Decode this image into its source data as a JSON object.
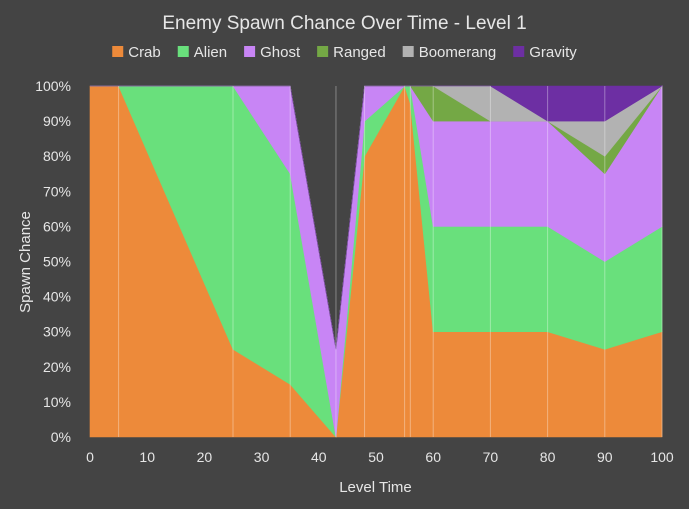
{
  "chart_data": {
    "type": "area",
    "stacked": true,
    "title": "Enemy Spawn Chance Over Time - Level 1",
    "xlabel": "Level Time",
    "ylabel": "Spawn Chance",
    "xlim": [
      0,
      100
    ],
    "ylim": [
      0,
      100
    ],
    "x_ticks": [
      0,
      10,
      20,
      30,
      40,
      50,
      60,
      70,
      80,
      90,
      100
    ],
    "y_ticks": [
      "0%",
      "10%",
      "20%",
      "30%",
      "40%",
      "50%",
      "60%",
      "70%",
      "80%",
      "90%",
      "100%"
    ],
    "grid": "vertical",
    "legend_position": "top",
    "x": [
      0,
      5,
      25,
      35,
      43,
      48,
      55,
      56,
      60,
      70,
      80,
      90,
      100
    ],
    "series": [
      {
        "name": "Crab",
        "color": "#ed8a3a",
        "values": [
          100,
          100,
          25,
          15,
          0,
          80,
          100,
          95,
          30,
          30,
          30,
          25,
          30
        ]
      },
      {
        "name": "Alien",
        "color": "#69e07c",
        "values": [
          0,
          0,
          75,
          60,
          0,
          10,
          0,
          5,
          30,
          30,
          30,
          25,
          30
        ]
      },
      {
        "name": "Ghost",
        "color": "#c885f5",
        "values": [
          0,
          0,
          0,
          25,
          25,
          10,
          0,
          0,
          30,
          30,
          30,
          25,
          40
        ]
      },
      {
        "name": "Ranged",
        "color": "#74a845",
        "values": [
          0,
          0,
          0,
          0,
          0,
          0,
          0,
          0,
          10,
          0,
          0,
          5,
          0
        ]
      },
      {
        "name": "Boomerang",
        "color": "#b2b2b2",
        "values": [
          0,
          0,
          0,
          0,
          0,
          0,
          0,
          0,
          0,
          10,
          0,
          10,
          0
        ]
      },
      {
        "name": "Gravity",
        "color": "#6d2fa3",
        "values": [
          0,
          0,
          0,
          0,
          0,
          0,
          0,
          0,
          0,
          0,
          10,
          10,
          0
        ]
      }
    ]
  },
  "colors": {
    "background": "#444444",
    "text": "#e6e6e6",
    "gridline": "#6a6a6a"
  }
}
